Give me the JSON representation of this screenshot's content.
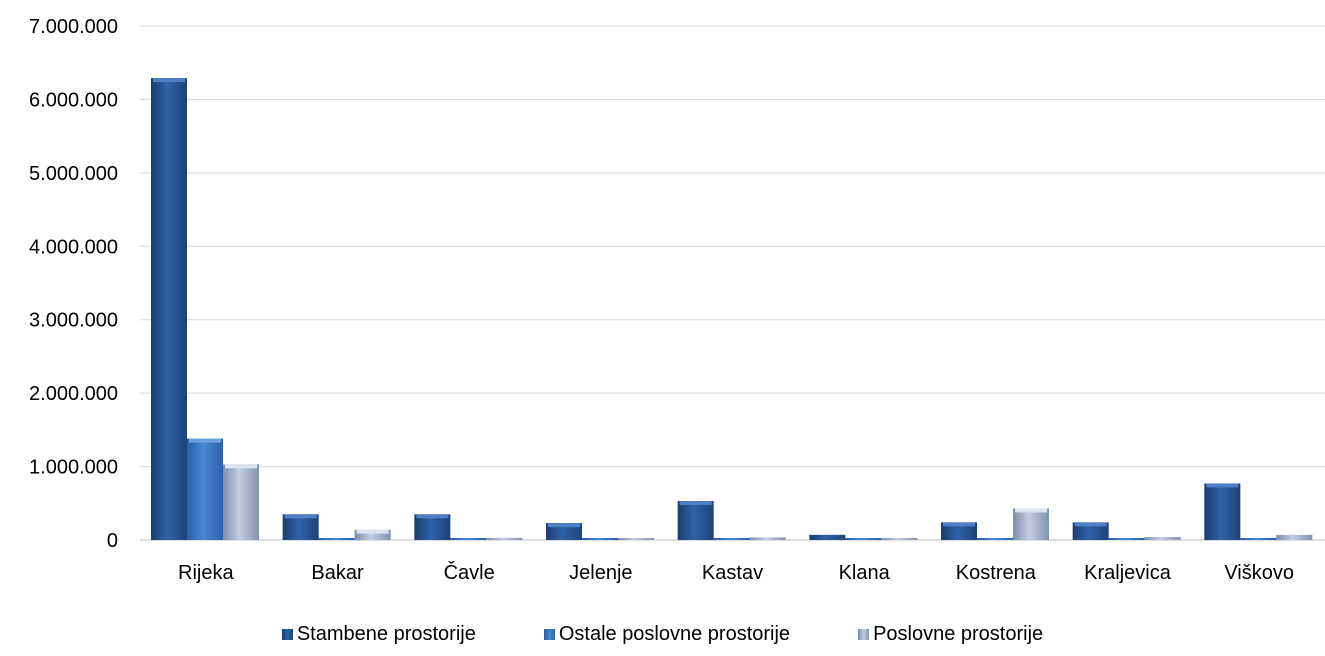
{
  "chart_data": {
    "type": "bar",
    "categories": [
      "Rijeka",
      "Bakar",
      "Čavle",
      "Jelenje",
      "Kastav",
      "Klana",
      "Kostrena",
      "Kraljevica",
      "Viškovo"
    ],
    "series": [
      {
        "name": "Stambene prostorije",
        "color": "#2b579a",
        "values": [
          6290000,
          350000,
          350000,
          230000,
          530000,
          70000,
          240000,
          240000,
          770000
        ]
      },
      {
        "name": "Ostale poslovne prostorije",
        "color": "#3f76c2",
        "values": [
          1380000,
          15000,
          10000,
          8000,
          10000,
          2000,
          15000,
          10000,
          15000
        ]
      },
      {
        "name": "Poslovne prostorije",
        "color": "#a8b4cc",
        "values": [
          1030000,
          140000,
          30000,
          10000,
          35000,
          0,
          430000,
          40000,
          70000
        ]
      }
    ],
    "yticks": [
      "0",
      "1.000.000",
      "2.000.000",
      "3.000.000",
      "4.000.000",
      "5.000.000",
      "6.000.000",
      "7.000.000"
    ],
    "ylim": [
      0,
      7000000
    ],
    "grid": true,
    "legend_position": "bottom"
  }
}
